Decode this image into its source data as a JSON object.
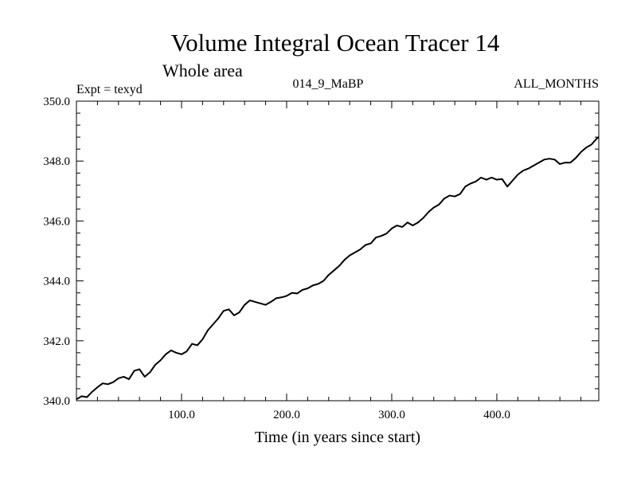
{
  "chart_data": {
    "type": "line",
    "title": "Volume Integral Ocean Tracer 14",
    "subtitle": "Whole area",
    "left_label": "Expt = texyd",
    "center_label": "014_9_MaBP",
    "right_label": "ALL_MONTHS",
    "xlabel": "Time (in years since start)",
    "ylabel": "",
    "xlim": [
      0,
      497
    ],
    "ylim": [
      340.0,
      350.0
    ],
    "x_ticks": [
      100,
      200,
      300,
      400
    ],
    "x_tick_labels": [
      "100.0",
      "200.0",
      "300.0",
      "400.0"
    ],
    "y_ticks": [
      340,
      342,
      344,
      346,
      348,
      350
    ],
    "y_tick_labels": [
      "340.0",
      "342.0",
      "344.0",
      "346.0",
      "348.0",
      "350.0"
    ],
    "grid": false,
    "line_color": "#000000",
    "series": [
      {
        "x": [
          0,
          5,
          10,
          15,
          20,
          25,
          30,
          35,
          40,
          45,
          50,
          55,
          60,
          65,
          70,
          75,
          80,
          85,
          90,
          95,
          100,
          105,
          110,
          115,
          120,
          125,
          130,
          135,
          140,
          145,
          150,
          155,
          160,
          165,
          170,
          175,
          180,
          185,
          190,
          195,
          200,
          205,
          210,
          215,
          220,
          225,
          230,
          235,
          240,
          245,
          250,
          255,
          260,
          265,
          270,
          275,
          280,
          285,
          290,
          295,
          300,
          305,
          310,
          315,
          320,
          325,
          330,
          335,
          340,
          345,
          350,
          355,
          360,
          365,
          370,
          375,
          380,
          385,
          390,
          395,
          400,
          405,
          410,
          415,
          420,
          425,
          430,
          435,
          440,
          445,
          450,
          455,
          460,
          465,
          470,
          475,
          480,
          485,
          490,
          495,
          497
        ],
        "values": [
          340.05,
          340.15,
          340.12,
          340.3,
          340.45,
          340.58,
          340.55,
          340.62,
          340.75,
          340.8,
          340.72,
          341.0,
          341.05,
          340.8,
          340.95,
          341.2,
          341.35,
          341.55,
          341.68,
          341.6,
          341.55,
          341.65,
          341.9,
          341.85,
          342.05,
          342.35,
          342.55,
          342.75,
          343.0,
          343.05,
          342.85,
          342.95,
          343.2,
          343.35,
          343.3,
          343.25,
          343.2,
          343.3,
          343.42,
          343.45,
          343.5,
          343.6,
          343.58,
          343.7,
          343.75,
          343.85,
          343.9,
          344.0,
          344.2,
          344.35,
          344.5,
          344.7,
          344.85,
          344.95,
          345.05,
          345.2,
          345.25,
          345.45,
          345.5,
          345.58,
          345.75,
          345.85,
          345.8,
          345.95,
          345.85,
          345.95,
          346.1,
          346.3,
          346.45,
          346.55,
          346.75,
          346.85,
          346.82,
          346.9,
          347.15,
          347.25,
          347.32,
          347.45,
          347.38,
          347.45,
          347.38,
          347.4,
          347.15,
          347.35,
          347.55,
          347.68,
          347.75,
          347.85,
          347.95,
          348.05,
          348.08,
          348.05,
          347.9,
          347.95,
          347.95,
          348.1,
          348.3,
          348.45,
          348.55,
          348.75,
          348.8
        ]
      }
    ]
  }
}
